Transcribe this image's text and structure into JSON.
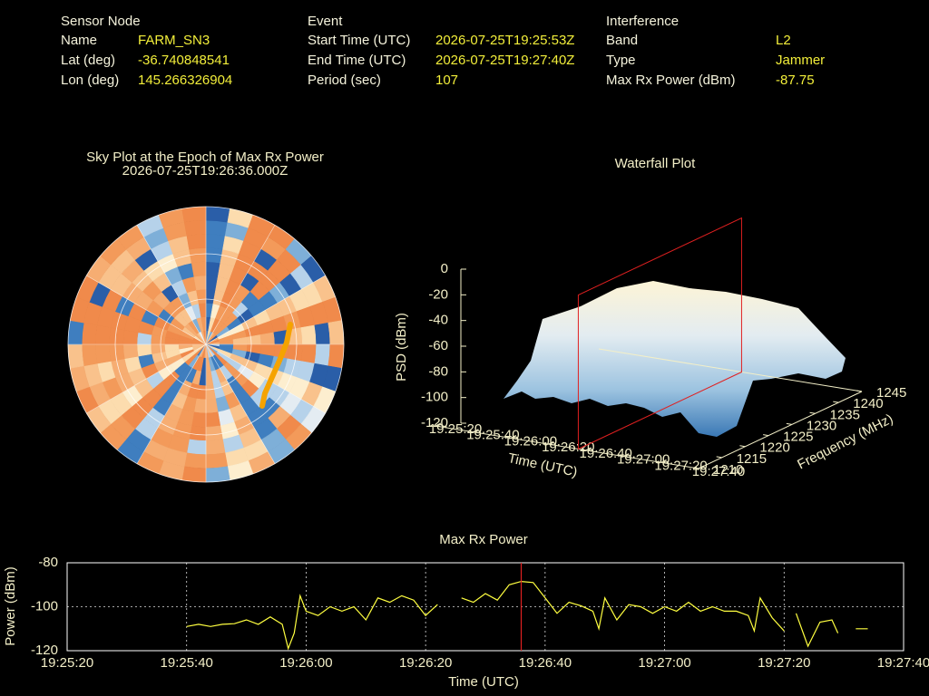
{
  "header": {
    "columns": [
      {
        "title": "Sensor Node",
        "rows": [
          {
            "label": "Name",
            "value": "FARM_SN3"
          },
          {
            "label": "Lat (deg)",
            "value": "-36.740848541"
          },
          {
            "label": "Lon (deg)",
            "value": "145.266326904"
          }
        ]
      },
      {
        "title": "Event",
        "rows": [
          {
            "label": "Start Time (UTC)",
            "value": "2026-07-25T19:25:53Z"
          },
          {
            "label": "End Time (UTC)",
            "value": "2026-07-25T19:27:40Z"
          },
          {
            "label": "Period (sec)",
            "value": "107"
          }
        ]
      },
      {
        "title": "Interference",
        "rows": [
          {
            "label": "Band",
            "value": "L2"
          },
          {
            "label": "Type",
            "value": "Jammer"
          },
          {
            "label": "Max Rx Power (dBm)",
            "value": "-87.75"
          }
        ]
      }
    ]
  },
  "chart_data": [
    {
      "type": "polar-heatmap",
      "title": "Sky Plot at the Epoch of Max Rx Power",
      "subtitle": "2026-07-25T19:26:36.000Z"
    },
    {
      "type": "surface3d",
      "title": "Waterfall Plot",
      "zlabel": "PSD (dBm)",
      "xlabel": "Time (UTC)",
      "ylabel": "Frequency (MHz)",
      "zlim": [
        -120,
        0
      ],
      "zticks": [
        0,
        -20,
        -40,
        -60,
        -80,
        -100,
        -120
      ],
      "xlim": [
        "19:25:20",
        "19:27:40"
      ],
      "xticks": [
        "19:25:20",
        "19:25:40",
        "19:26:00",
        "19:26:20",
        "19:26:40",
        "19:27:00",
        "19:27:20",
        "19:27:40"
      ],
      "ylim": [
        1210,
        1245
      ],
      "yticks": [
        1210,
        1215,
        1220,
        1225,
        1230,
        1235,
        1240,
        1245
      ],
      "marker_x": "19:26:36",
      "marker_color": "#e02020"
    },
    {
      "type": "line",
      "title": "Max Rx Power",
      "xlabel": "Time (UTC)",
      "ylabel": "Power (dBm)",
      "color": "#ffff40",
      "grid": true,
      "xlim": [
        "19:25:20",
        "19:27:40"
      ],
      "xticks": [
        "19:25:20",
        "19:25:40",
        "19:26:00",
        "19:26:20",
        "19:26:40",
        "19:27:00",
        "19:27:20",
        "19:27:40"
      ],
      "ylim": [
        -120,
        -80
      ],
      "yticks": [
        -80,
        -100,
        -120
      ],
      "marker_x": "19:26:36",
      "marker_color": "#e02020",
      "x": [
        "19:25:40",
        "19:25:42",
        "19:25:44",
        "19:25:46",
        "19:25:48",
        "19:25:50",
        "19:25:52",
        "19:25:54",
        "19:25:56",
        "19:25:57",
        "19:25:58",
        "19:25:59",
        "19:26:00",
        "19:26:02",
        "19:26:04",
        "19:26:06",
        "19:26:08",
        "19:26:10",
        "19:26:12",
        "19:26:14",
        "19:26:16",
        "19:26:18",
        "19:26:20",
        "19:26:22",
        "19:26:23",
        "19:26:26",
        "19:26:28",
        "19:26:30",
        "19:26:32",
        "19:26:34",
        "19:26:36",
        "19:26:38",
        "19:26:40",
        "19:26:42",
        "19:26:44",
        "19:26:46",
        "19:26:48",
        "19:26:49",
        "19:26:50",
        "19:26:52",
        "19:26:54",
        "19:26:56",
        "19:26:58",
        "19:27:00",
        "19:27:02",
        "19:27:04",
        "19:27:06",
        "19:27:08",
        "19:27:10",
        "19:27:12",
        "19:27:14",
        "19:27:15",
        "19:27:16",
        "19:27:18",
        "19:27:20",
        "19:27:21",
        "19:27:22",
        "19:27:24",
        "19:27:26",
        "19:27:28",
        "19:27:29",
        "19:27:30",
        "19:27:32",
        "19:27:34"
      ],
      "values": [
        -109,
        -108,
        -109,
        -108,
        -107.7,
        -106,
        -108,
        -104.6,
        -108,
        -119,
        -112,
        -95,
        -102,
        -104,
        -100,
        -102,
        -100,
        -106,
        -96,
        -98,
        -95,
        -97,
        -104,
        -99,
        null,
        -96,
        -98,
        -94,
        -97,
        -90,
        -88.5,
        -89,
        -96,
        -103,
        -98,
        -99.6,
        -102,
        -110,
        -96,
        -106,
        -99,
        -100,
        -103,
        -100,
        -102,
        -98,
        -102,
        -100,
        -102,
        -102,
        -104,
        -111,
        -96,
        -105,
        -111,
        null,
        -103,
        -118,
        -107,
        -106,
        -112,
        null,
        -110,
        -110
      ]
    }
  ]
}
